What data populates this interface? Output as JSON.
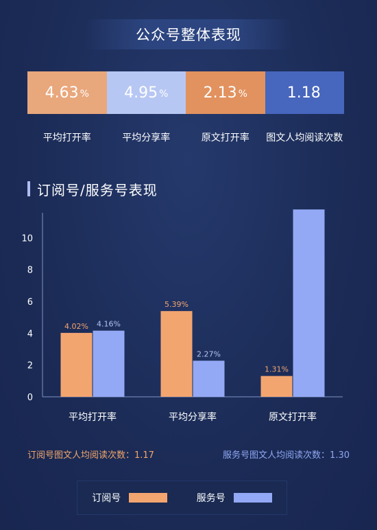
{
  "header": {
    "title": "公众号整体表现"
  },
  "overall": {
    "cards": [
      {
        "value": "4.63",
        "unit": "%",
        "label": "平均打开率",
        "color": "#e9a77c"
      },
      {
        "value": "4.95",
        "unit": "%",
        "label": "平均分享率",
        "color": "#b7c7f3"
      },
      {
        "value": "2.13",
        "unit": "%",
        "label": "原文打开率",
        "color": "#e2925f"
      },
      {
        "value": "1.18",
        "unit": "",
        "label": "图文人均阅读次数",
        "color": "#4766bd"
      }
    ]
  },
  "section": {
    "title": "订阅号/服务号表现"
  },
  "chart_data": {
    "type": "bar",
    "title": "",
    "xlabel": "",
    "ylabel": "",
    "categories": [
      "平均打开率",
      "平均分享率",
      "原文打开率"
    ],
    "series": [
      {
        "name": "订阅号",
        "values": [
          4.02,
          5.39,
          1.31
        ],
        "labels": [
          "4.02%",
          "5.39%",
          "1.31%"
        ],
        "color": "#f3a570",
        "label_color": "#f3a570"
      },
      {
        "name": "服务号",
        "values": [
          4.16,
          2.27,
          11.78
        ],
        "labels": [
          "4.16%",
          "2.27%",
          "11.78%"
        ],
        "color": "#93a9f5",
        "label_color": "#b3c2f2"
      }
    ],
    "yticks": [
      "0",
      "2",
      "4",
      "6",
      "8",
      "10"
    ],
    "ylim": [
      0,
      12
    ],
    "grid": false,
    "legend": "bottom"
  },
  "footnotes": {
    "left": "订阅号图文人均阅读次数：1.17",
    "right": "服务号图文人均阅读次数：1.30"
  },
  "legend": {
    "items": [
      {
        "label": "订阅号",
        "color": "#f3a570"
      },
      {
        "label": "服务号",
        "color": "#93a9f5"
      }
    ]
  }
}
